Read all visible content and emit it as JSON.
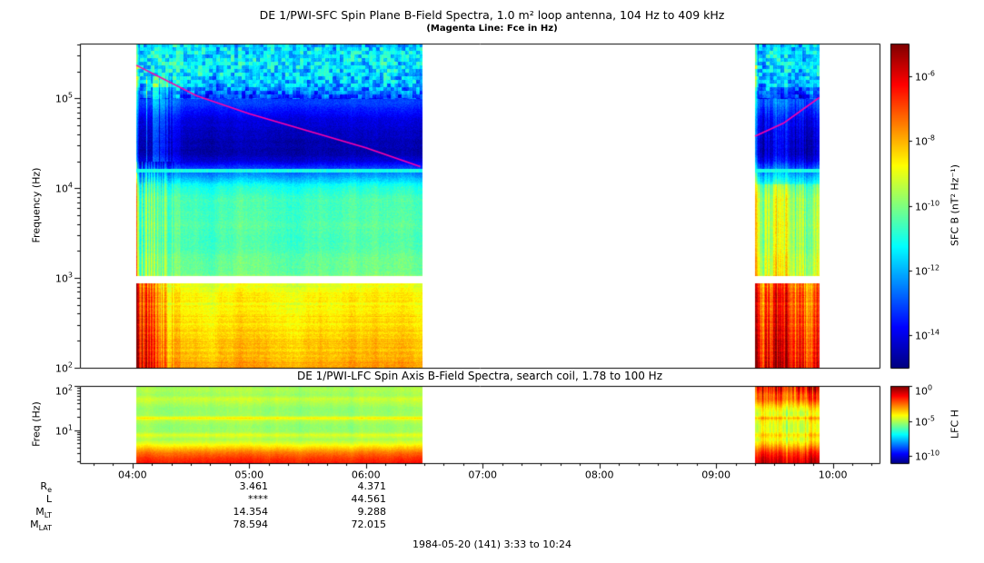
{
  "top_panel": {
    "title": "DE 1/PWI-SFC  Spin Plane B-Field Spectra, 1.0 m² loop antenna, 104 Hz to 409 kHz",
    "subtitle": "(Magenta Line: Fce in Hz)",
    "ylabel": "Frequency (Hz)",
    "colorbar_label": "SFC B (nT² Hz⁻¹)"
  },
  "bottom_panel": {
    "title": "DE 1/PWI-LFC  Spin Axis B-Field Spectra, search coil, 1.78 to 100 Hz",
    "ylabel": "Freq (Hz)",
    "colorbar_label": "LFC H"
  },
  "footer": {
    "rows": [
      {
        "label": "R",
        "sub": "e",
        "col1": "3.461",
        "col2": "4.371"
      },
      {
        "label": "L",
        "sub": "",
        "col1": "****",
        "col2": "44.561"
      },
      {
        "label": "M",
        "sub": "LT",
        "col1": "14.354",
        "col2": "9.288"
      },
      {
        "label": "M",
        "sub": "LAT",
        "col1": "78.594",
        "col2": "72.015"
      }
    ],
    "date_line": "1984-05-20 (141) 3:33 to 10:24"
  },
  "chart_data": [
    {
      "type": "heatmap",
      "title": "DE 1/PWI-SFC  Spin Plane B-Field Spectra, 1.0 m² loop antenna, 104 Hz to 409 kHz",
      "subtitle": "(Magenta Line: Fce in Hz)",
      "xlabel": "",
      "ylabel": "Frequency (Hz)",
      "yscale": "log",
      "ylim": [
        100,
        409000
      ],
      "ytick_exponents": [
        2,
        3,
        4,
        5
      ],
      "time_start": "03:33",
      "time_end": "10:24",
      "xtick_labels": [
        "04:00",
        "05:00",
        "06:00",
        "07:00",
        "08:00",
        "09:00",
        "10:00"
      ],
      "data_intervals": [
        [
          "04:02",
          "06:29"
        ],
        [
          "09:20",
          "09:53"
        ]
      ],
      "colorbar": {
        "label": "SFC B (nT² Hz⁻¹)",
        "tick_exponents": [
          -6,
          -8,
          -10,
          -12,
          -14
        ],
        "top_exponent": -5,
        "bottom_exponent": -15
      },
      "fce_line": {
        "color": "#ff00aa",
        "segments": [
          [
            [
              "04:02",
              5.37
            ],
            [
              "04:33",
              5.03
            ],
            [
              "05:00",
              4.83
            ],
            [
              "05:30",
              4.64
            ],
            [
              "06:00",
              4.45
            ],
            [
              "06:28",
              4.24
            ]
          ],
          [
            [
              "09:20",
              4.58
            ],
            [
              "09:35",
              4.73
            ],
            [
              "09:53",
              5.01
            ]
          ]
        ]
      },
      "base_profile": [
        [
          2.0,
          0.74
        ],
        [
          2.2,
          0.7
        ],
        [
          2.5,
          0.67
        ],
        [
          2.75,
          0.645
        ],
        [
          2.95,
          0.62
        ],
        [
          3.05,
          0.5
        ],
        [
          3.3,
          0.47
        ],
        [
          3.6,
          0.46
        ],
        [
          3.85,
          0.45
        ],
        [
          4.0,
          0.42
        ],
        [
          4.1,
          0.33
        ],
        [
          4.2,
          0.22
        ],
        [
          4.3,
          0.1
        ],
        [
          4.4,
          0.05
        ],
        [
          4.6,
          0.06
        ],
        [
          4.8,
          0.12
        ],
        [
          5.0,
          0.2
        ],
        [
          5.15,
          0.3
        ],
        [
          5.3,
          0.36
        ],
        [
          5.45,
          0.38
        ],
        [
          5.61,
          0.33
        ]
      ],
      "features": {
        "white_gap_logf": [
          2.95,
          3.03
        ],
        "cyan_line_logf": 4.2,
        "low_freq_burst_start": "04:02"
      }
    },
    {
      "type": "heatmap",
      "title": "DE 1/PWI-LFC  Spin Axis B-Field Spectra, search coil, 1.78 to 100 Hz",
      "xlabel": "",
      "ylabel": "Freq (Hz)",
      "yscale": "log",
      "ylim": [
        1.78,
        100
      ],
      "ytick_exponents": [
        1,
        2
      ],
      "time_start": "03:33",
      "time_end": "10:24",
      "xtick_labels": [
        "04:00",
        "05:00",
        "06:00",
        "07:00",
        "08:00",
        "09:00",
        "10:00"
      ],
      "data_intervals": [
        [
          "04:02",
          "06:29"
        ],
        [
          "09:20",
          "09:53"
        ]
      ],
      "colorbar": {
        "label": "LFC H",
        "tick_exponents": [
          0,
          -5,
          -10
        ],
        "top_exponent": 0,
        "bottom_exponent": -11
      },
      "base_profile": [
        [
          0.25,
          0.86
        ],
        [
          0.38,
          0.82
        ],
        [
          0.5,
          0.76
        ],
        [
          0.6,
          0.68
        ],
        [
          0.7,
          0.6
        ],
        [
          0.8,
          0.54
        ],
        [
          0.9,
          0.6
        ],
        [
          0.97,
          0.53
        ],
        [
          1.1,
          0.52
        ],
        [
          1.22,
          0.55
        ],
        [
          1.28,
          0.64
        ],
        [
          1.34,
          0.53
        ],
        [
          1.5,
          0.52
        ],
        [
          1.62,
          0.55
        ],
        [
          1.72,
          0.58
        ],
        [
          1.8,
          0.53
        ],
        [
          1.92,
          0.55
        ],
        [
          2.0,
          0.53
        ]
      ]
    }
  ]
}
